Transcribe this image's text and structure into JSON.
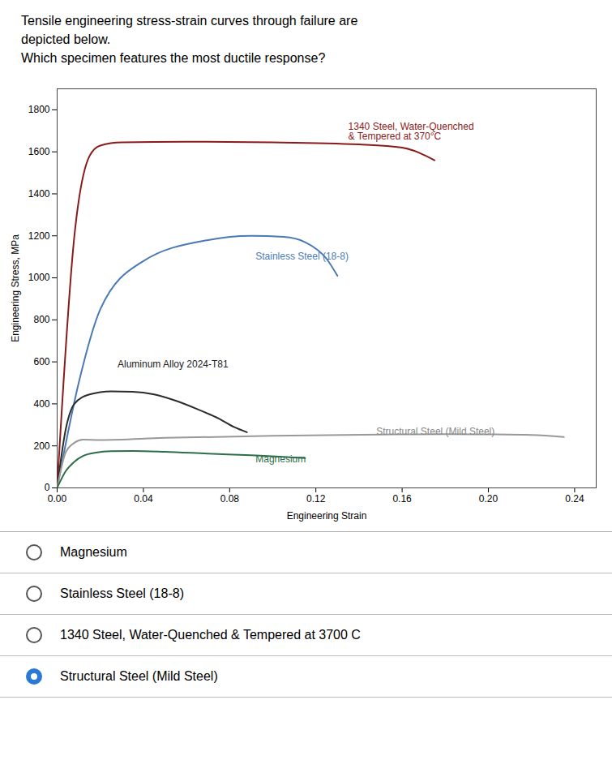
{
  "chart_data": {
    "type": "line",
    "title": "Tensile engineering stress-strain curves through failure are\ndepicted below.",
    "subtitle": "Which specimen features the most ductile response?",
    "xlabel": "Engineering Strain",
    "ylabel": "Engineering Stress, MPa",
    "xlim": [
      0,
      0.25
    ],
    "ylim": [
      0,
      1900
    ],
    "xticks": [
      {
        "value": 0,
        "label": "0.00"
      },
      0.04,
      0.08,
      0.12,
      0.16,
      {
        "value": 0.2,
        "label": "0.20"
      },
      0.24
    ],
    "yticks": [
      0,
      200,
      400,
      600,
      800,
      1000,
      1200,
      1400,
      1600,
      1800
    ],
    "grid": false,
    "series": [
      {
        "color": "#8b1a1a",
        "x": [
          0,
          0.008,
          0.015,
          0.02,
          0.03,
          0.06,
          0.1,
          0.14,
          0.16,
          0.175
        ],
        "values": [
          0,
          1200,
          1580,
          1630,
          1645,
          1648,
          1645,
          1635,
          1620,
          1560
        ]
      },
      {
        "color": "#4a7ab5",
        "x": [
          0,
          0.01,
          0.02,
          0.04,
          0.07,
          0.09,
          0.105,
          0.115,
          0.125,
          0.13
        ],
        "values": [
          0,
          500,
          850,
          1080,
          1180,
          1200,
          1195,
          1170,
          1090,
          1010
        ]
      },
      {
        "color": "#2c2c2c",
        "x": [
          0,
          0.004,
          0.008,
          0.015,
          0.025,
          0.035,
          0.045,
          0.055,
          0.065,
          0.075,
          0.082,
          0.088
        ],
        "values": [
          0,
          280,
          400,
          445,
          460,
          458,
          445,
          415,
          375,
          330,
          290,
          265
        ]
      },
      {
        "color": "#999999",
        "x": [
          0,
          0.004,
          0.008,
          0.012,
          0.02,
          0.05,
          0.1,
          0.15,
          0.18,
          0.2,
          0.22,
          0.235
        ],
        "values": [
          0,
          170,
          215,
          230,
          228,
          238,
          248,
          254,
          256,
          255,
          252,
          242
        ]
      },
      {
        "color": "#2d6e4a",
        "x": [
          0,
          0.004,
          0.008,
          0.012,
          0.018,
          0.025,
          0.035,
          0.05,
          0.07,
          0.09,
          0.105,
          0.115
        ],
        "values": [
          0,
          80,
          125,
          152,
          168,
          175,
          176,
          172,
          163,
          155,
          148,
          142
        ]
      }
    ],
    "annotations": [
      {
        "text": "1340 Steel, Water-Quenched\n& Tempered at 370°C",
        "x": 0.135,
        "y": 1660,
        "color": "#8b1a1a",
        "anchor": "bottom"
      },
      {
        "text": "Stainless Steel (18-8)",
        "x": 0.092,
        "y": 1120,
        "color": "#4a7ab5",
        "anchor": "top"
      },
      {
        "text": "Aluminum Alloy 2024-T81",
        "x": 0.028,
        "y": 575,
        "color": "#1a1a1a",
        "anchor": "bottom"
      },
      {
        "text": "Structural Steel (Mild Steel)",
        "x": 0.148,
        "y": 268,
        "color": "#888888",
        "anchor": "middle"
      },
      {
        "text": "Magnesium",
        "x": 0.092,
        "y": 155,
        "color": "#2d6e4a",
        "anchor": "top"
      }
    ],
    "answer_choices": [
      {
        "text": "Magnesium",
        "selected": false
      },
      {
        "text": "Stainless Steel (18-8)",
        "selected": false
      },
      {
        "text": "1340 Steel, Water-Quenched & Tempered at 3700 C",
        "selected": false
      },
      {
        "text": "Structural Steel (Mild Steel)",
        "selected": true
      }
    ]
  }
}
